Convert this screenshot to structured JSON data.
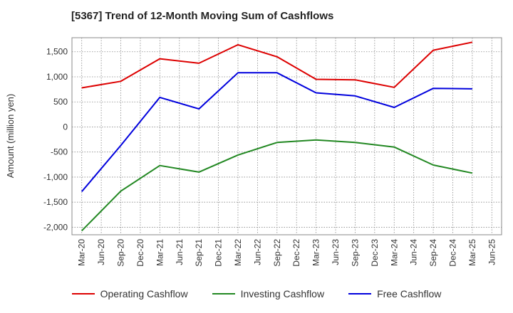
{
  "title": "[5367]  Trend of 12-Month Moving Sum of Cashflows",
  "colors": {
    "operating": "#dd0000",
    "investing": "#228822",
    "free": "#0000dd",
    "grid": "#888888"
  },
  "chart_data": {
    "type": "line",
    "title": "[5367]  Trend of 12-Month Moving Sum of Cashflows",
    "xlabel": "",
    "ylabel": "Amount (million yen)",
    "x_tick_labels": [
      "Mar-20",
      "Jun-20",
      "Sep-20",
      "Dec-20",
      "Mar-21",
      "Jun-21",
      "Sep-21",
      "Dec-21",
      "Mar-22",
      "Jun-22",
      "Sep-22",
      "Dec-22",
      "Mar-23",
      "Jun-23",
      "Sep-23",
      "Dec-23",
      "Mar-24",
      "Jun-24",
      "Sep-24",
      "Dec-24",
      "Mar-25",
      "Jun-25"
    ],
    "y_ticks": [
      -2000,
      -1500,
      -1000,
      -500,
      0,
      500,
      1000,
      1500
    ],
    "y_tick_labels": [
      "-2,000",
      "-1,500",
      "-1,000",
      "-500",
      "0",
      "500",
      "1,000",
      "1,500"
    ],
    "ylim": [
      -2150,
      1780
    ],
    "grid": true,
    "legend_position": "bottom",
    "x": [
      "Mar-20",
      "Sep-20",
      "Mar-21",
      "Sep-21",
      "Mar-22",
      "Sep-22",
      "Mar-23",
      "Sep-23",
      "Mar-24",
      "Sep-24",
      "Mar-25"
    ],
    "series": [
      {
        "name": "Operating Cashflow",
        "color_key": "operating",
        "values": [
          780,
          910,
          1360,
          1270,
          1640,
          1400,
          950,
          940,
          790,
          1530,
          1690
        ]
      },
      {
        "name": "Investing Cashflow",
        "color_key": "investing",
        "values": [
          -2070,
          -1280,
          -770,
          -900,
          -560,
          -310,
          -260,
          -310,
          -400,
          -760,
          -920
        ]
      },
      {
        "name": "Free Cashflow",
        "color_key": "free",
        "values": [
          -1290,
          -370,
          590,
          360,
          1080,
          1080,
          680,
          620,
          390,
          770,
          760
        ]
      }
    ]
  }
}
